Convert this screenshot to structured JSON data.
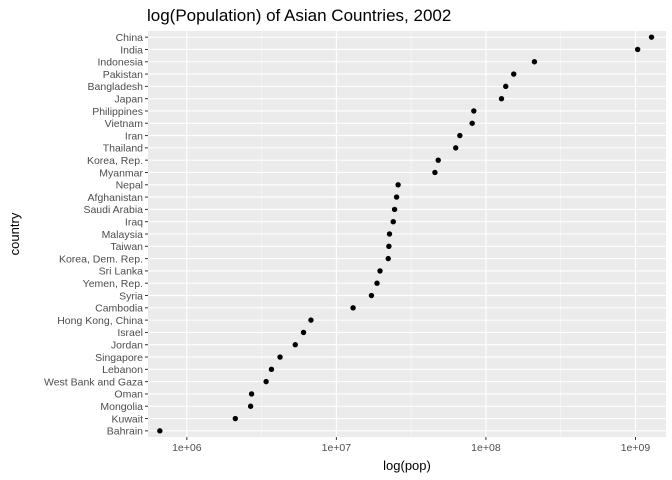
{
  "chart_data": {
    "type": "scatter",
    "title": "log(Population) of Asian Countries, 2002",
    "xlabel": "log(pop)",
    "ylabel": "country",
    "x_scale": "log10",
    "xlim": [
      550000,
      1600000000
    ],
    "grid": true,
    "x_ticks": [
      {
        "value": 1000000,
        "label": "1e+06"
      },
      {
        "value": 10000000,
        "label": "1e+07"
      },
      {
        "value": 100000000,
        "label": "1e+08"
      },
      {
        "value": 1000000000,
        "label": "1e+09"
      }
    ],
    "points": [
      {
        "country": "China",
        "pop": 1280400000
      },
      {
        "country": "India",
        "pop": 1034170000
      },
      {
        "country": "Indonesia",
        "pop": 211060000
      },
      {
        "country": "Pakistan",
        "pop": 153400000
      },
      {
        "country": "Bangladesh",
        "pop": 135660000
      },
      {
        "country": "Japan",
        "pop": 127070000
      },
      {
        "country": "Philippines",
        "pop": 82990000
      },
      {
        "country": "Vietnam",
        "pop": 80910000
      },
      {
        "country": "Iran",
        "pop": 66910000
      },
      {
        "country": "Thailand",
        "pop": 62810000
      },
      {
        "country": "Korea, Rep.",
        "pop": 47970000
      },
      {
        "country": "Myanmar",
        "pop": 45600000
      },
      {
        "country": "Nepal",
        "pop": 25870000
      },
      {
        "country": "Afghanistan",
        "pop": 25270000
      },
      {
        "country": "Saudi Arabia",
        "pop": 24500000
      },
      {
        "country": "Iraq",
        "pop": 24000000
      },
      {
        "country": "Malaysia",
        "pop": 22660000
      },
      {
        "country": "Taiwan",
        "pop": 22450000
      },
      {
        "country": "Korea, Dem. Rep.",
        "pop": 22220000
      },
      {
        "country": "Sri Lanka",
        "pop": 19580000
      },
      {
        "country": "Yemen, Rep.",
        "pop": 18700000
      },
      {
        "country": "Syria",
        "pop": 17160000
      },
      {
        "country": "Cambodia",
        "pop": 12930000
      },
      {
        "country": "Hong Kong, China",
        "pop": 6760000
      },
      {
        "country": "Israel",
        "pop": 6030000
      },
      {
        "country": "Jordan",
        "pop": 5310000
      },
      {
        "country": "Singapore",
        "pop": 4200000
      },
      {
        "country": "Lebanon",
        "pop": 3680000
      },
      {
        "country": "West Bank and Gaza",
        "pop": 3390000
      },
      {
        "country": "Oman",
        "pop": 2710000
      },
      {
        "country": "Mongolia",
        "pop": 2670000
      },
      {
        "country": "Kuwait",
        "pop": 2110000
      },
      {
        "country": "Bahrain",
        "pop": 660000
      }
    ],
    "colors": {
      "panel": "#ebebeb",
      "grid_major": "#ffffff",
      "point": "#000000",
      "tick_text": "#4d4d4d"
    }
  }
}
